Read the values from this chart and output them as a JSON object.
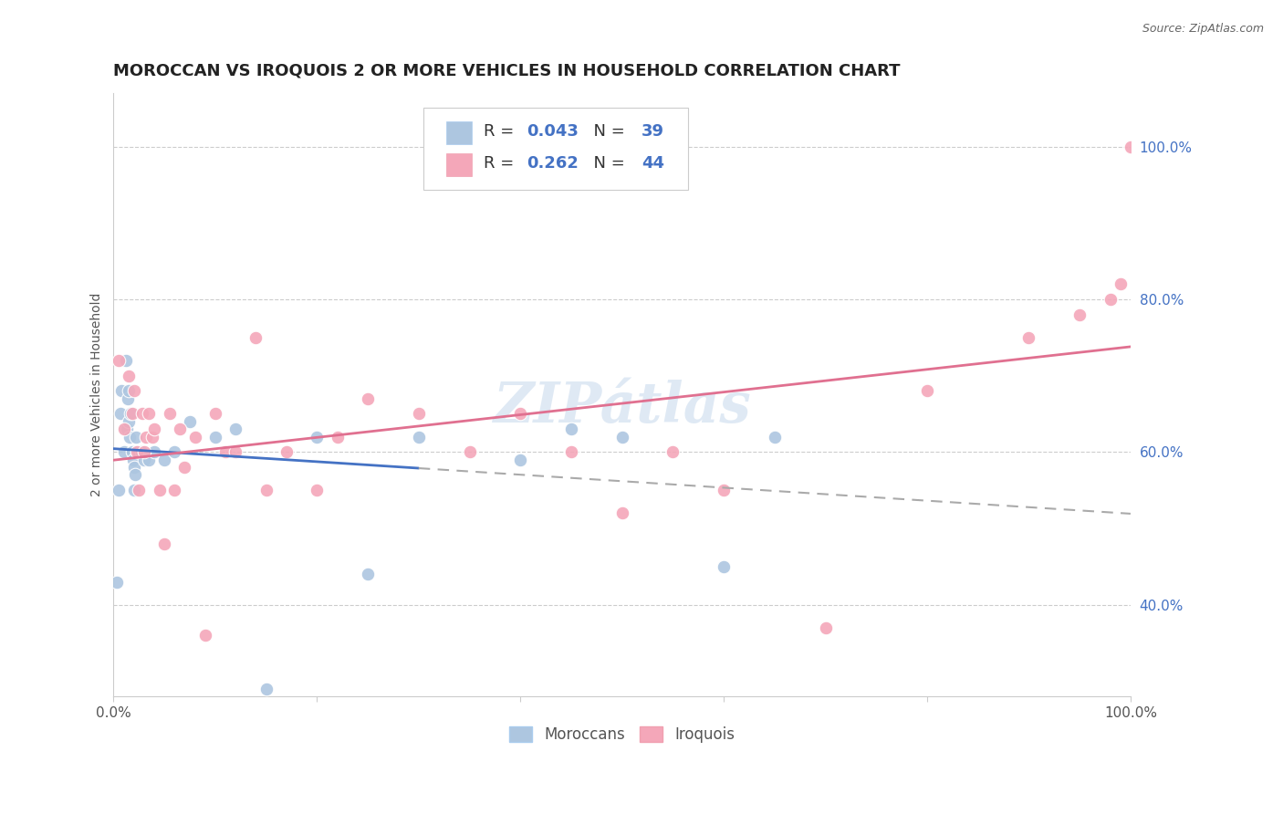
{
  "title": "MOROCCAN VS IROQUOIS 2 OR MORE VEHICLES IN HOUSEHOLD CORRELATION CHART",
  "source": "Source: ZipAtlas.com",
  "ylabel": "2 or more Vehicles in Household",
  "watermark": "ZIPátlas",
  "legend_labels": [
    "Moroccans",
    "Iroquois"
  ],
  "moroccan_R": "0.043",
  "moroccan_N": "39",
  "iroquois_R": "0.262",
  "iroquois_N": "44",
  "moroccan_color": "#adc6e0",
  "iroquois_color": "#f4a7b9",
  "moroccan_line_color": "#4472c4",
  "iroquois_line_color": "#e07090",
  "blue_text_color": "#4472c4",
  "background_color": "#ffffff",
  "moroccan_x": [
    0.3,
    0.5,
    0.7,
    0.8,
    1.0,
    1.1,
    1.2,
    1.3,
    1.4,
    1.5,
    1.5,
    1.6,
    1.7,
    1.8,
    1.9,
    2.0,
    2.0,
    2.1,
    2.2,
    2.3,
    2.5,
    2.7,
    3.0,
    3.5,
    4.0,
    5.0,
    6.0,
    7.5,
    10.0,
    12.0,
    15.0,
    20.0,
    25.0,
    30.0,
    40.0,
    45.0,
    50.0,
    60.0,
    65.0
  ],
  "moroccan_y": [
    43,
    55,
    65,
    68,
    60,
    63,
    72,
    63,
    67,
    68,
    64,
    62,
    65,
    60,
    59,
    58,
    55,
    57,
    62,
    60,
    60,
    60,
    59,
    59,
    60,
    59,
    60,
    64,
    62,
    63,
    29,
    62,
    44,
    62,
    59,
    63,
    62,
    45,
    62
  ],
  "iroquois_x": [
    0.5,
    1.0,
    1.5,
    1.8,
    2.0,
    2.3,
    2.5,
    2.8,
    3.0,
    3.2,
    3.5,
    3.8,
    4.0,
    4.5,
    5.0,
    5.5,
    6.0,
    6.5,
    7.0,
    8.0,
    9.0,
    10.0,
    11.0,
    12.0,
    14.0,
    15.0,
    17.0,
    20.0,
    22.0,
    25.0,
    30.0,
    35.0,
    40.0,
    45.0,
    50.0,
    55.0,
    60.0,
    70.0,
    80.0,
    90.0,
    95.0,
    98.0,
    99.0,
    100.0
  ],
  "iroquois_y": [
    72,
    63,
    70,
    65,
    68,
    60,
    55,
    65,
    60,
    62,
    65,
    62,
    63,
    55,
    48,
    65,
    55,
    63,
    58,
    62,
    36,
    65,
    60,
    60,
    75,
    55,
    60,
    55,
    62,
    67,
    65,
    60,
    65,
    60,
    52,
    60,
    55,
    37,
    68,
    75,
    78,
    80,
    82,
    100
  ],
  "xmin": 0,
  "xmax": 100,
  "ymin": 28,
  "ymax": 107,
  "yticks": [
    40.0,
    60.0,
    80.0,
    100.0
  ],
  "xtick_positions": [
    0,
    20,
    40,
    60,
    80,
    100
  ],
  "xtick_labels": [
    "0.0%",
    "",
    "",
    "",
    "",
    "100.0%"
  ]
}
